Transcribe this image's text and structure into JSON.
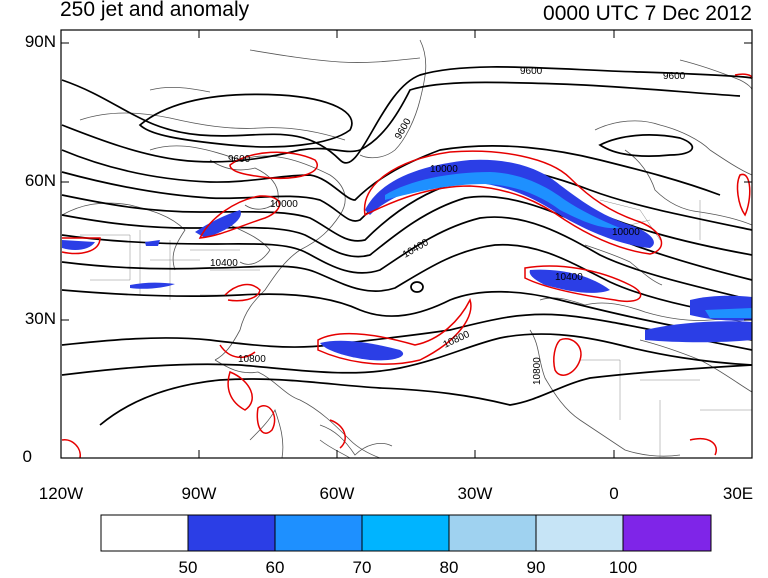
{
  "header": {
    "left_title": "250 jet and anomaly",
    "right_title": "0000 UTC 7 Dec 2012"
  },
  "axes": {
    "y_ticks": [
      "90N",
      "60N",
      "30N",
      "0"
    ],
    "x_ticks": [
      "120W",
      "90W",
      "60W",
      "30W",
      "0",
      "30E"
    ]
  },
  "contour_labels": [
    "9600",
    "9600",
    "9600",
    "9600",
    "10000",
    "10000",
    "10000",
    "10400",
    "10400",
    "10400",
    "10800",
    "10800",
    "10800"
  ],
  "colorbar": {
    "labels": [
      "50",
      "60",
      "70",
      "80",
      "90",
      "100"
    ],
    "colors": [
      "#ffffff",
      "#2b3ee6",
      "#1e90ff",
      "#00b4ff",
      "#9fd2f0",
      "#c6e4f6",
      "#7f25e8"
    ]
  },
  "colors": {
    "jet_fill": "#2b3ee6",
    "jet_core": "#1e90ff",
    "anomaly": "#e60000",
    "height": "#000000",
    "coast": "#444444"
  }
}
